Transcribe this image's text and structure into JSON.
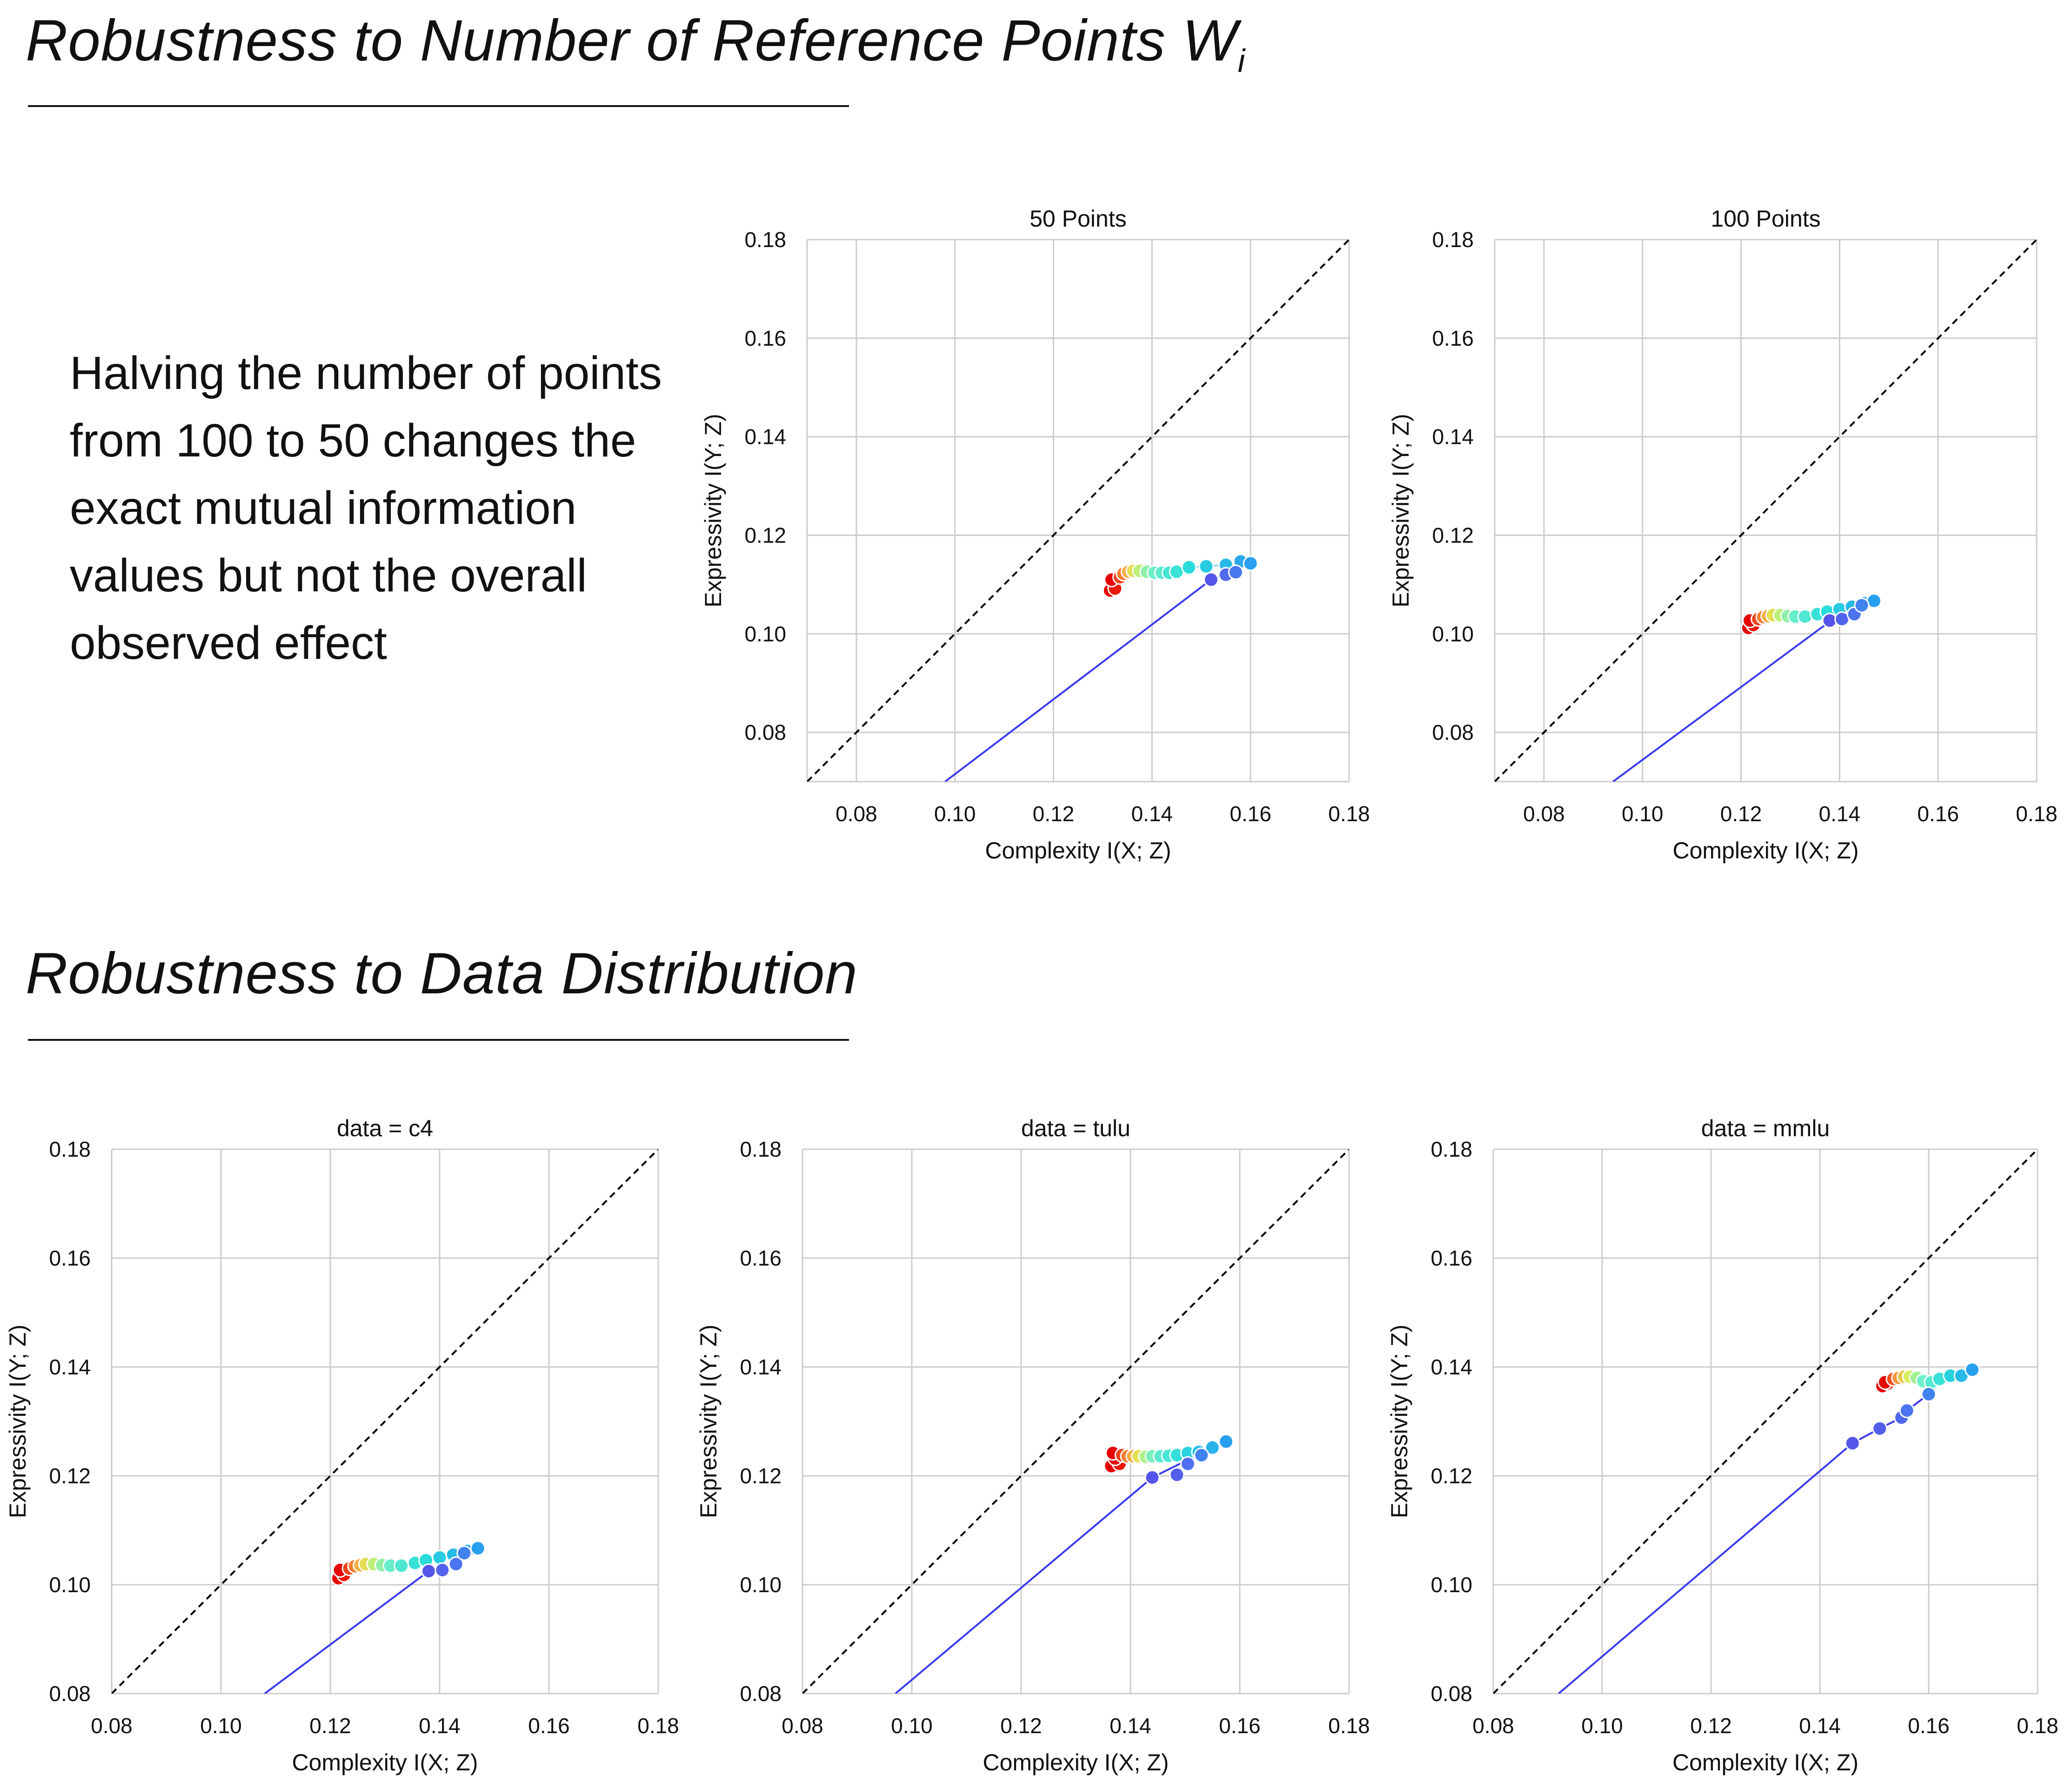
{
  "section1": {
    "title": "Robustness to Number of Reference Points W",
    "title_subscript": "i",
    "description": "Halving the number of points from 100 to 50 changes the exact mutual information values but not the overall observed effect"
  },
  "section2": {
    "title": "Robustness to Data Distribution"
  },
  "colors": {
    "frontier_line": "#3a3af0",
    "diagonal": "#000000",
    "grid": "#cccccc",
    "colormap": "rainbow (red → yellow → cyan → blue)"
  },
  "chart_data": [
    {
      "type": "scatter",
      "title": "50 Points",
      "xlabel": "Complexity I(X; Z)",
      "ylabel": "Expressivity I(Y; Z)",
      "xlim": [
        0.07,
        0.18
      ],
      "ylim": [
        0.07,
        0.18
      ],
      "xticks": [
        "0.08",
        "0.10",
        "0.12",
        "0.14",
        "0.16",
        "0.18"
      ],
      "yticks": [
        "0.08",
        "0.10",
        "0.12",
        "0.14",
        "0.16",
        "0.18"
      ],
      "diagonal": true,
      "frontier": [
        [
          0.098,
          0.07
        ],
        [
          0.152,
          0.111
        ],
        [
          0.155,
          0.112
        ],
        [
          0.157,
          0.1125
        ],
        [
          0.16,
          0.1145
        ]
      ],
      "points": [
        {
          "x": 0.1315,
          "y": 0.1088,
          "c": 0.0
        },
        {
          "x": 0.1325,
          "y": 0.1092,
          "c": 0.03
        },
        {
          "x": 0.1318,
          "y": 0.111,
          "c": 0.0
        },
        {
          "x": 0.1335,
          "y": 0.1115,
          "c": 0.08
        },
        {
          "x": 0.1342,
          "y": 0.1122,
          "c": 0.15
        },
        {
          "x": 0.1352,
          "y": 0.1126,
          "c": 0.22
        },
        {
          "x": 0.1362,
          "y": 0.1128,
          "c": 0.3
        },
        {
          "x": 0.1375,
          "y": 0.1128,
          "c": 0.38
        },
        {
          "x": 0.139,
          "y": 0.1126,
          "c": 0.45
        },
        {
          "x": 0.1405,
          "y": 0.1124,
          "c": 0.5
        },
        {
          "x": 0.142,
          "y": 0.1124,
          "c": 0.55
        },
        {
          "x": 0.1435,
          "y": 0.1124,
          "c": 0.6
        },
        {
          "x": 0.145,
          "y": 0.1126,
          "c": 0.63
        },
        {
          "x": 0.1475,
          "y": 0.1135,
          "c": 0.68
        },
        {
          "x": 0.151,
          "y": 0.1137,
          "c": 0.72
        },
        {
          "x": 0.155,
          "y": 0.114,
          "c": 0.76
        },
        {
          "x": 0.158,
          "y": 0.1147,
          "c": 0.8
        },
        {
          "x": 0.16,
          "y": 0.1143,
          "c": 0.82
        },
        {
          "x": 0.152,
          "y": 0.111,
          "c": 0.97
        },
        {
          "x": 0.155,
          "y": 0.112,
          "c": 0.93
        },
        {
          "x": 0.157,
          "y": 0.1125,
          "c": 0.9
        }
      ]
    },
    {
      "type": "scatter",
      "title": "100 Points",
      "xlabel": "Complexity I(X; Z)",
      "ylabel": "Expressivity I(Y; Z)",
      "xlim": [
        0.07,
        0.18
      ],
      "ylim": [
        0.07,
        0.18
      ],
      "xticks": [
        "0.08",
        "0.10",
        "0.12",
        "0.14",
        "0.16",
        "0.18"
      ],
      "yticks": [
        "0.08",
        "0.10",
        "0.12",
        "0.14",
        "0.16",
        "0.18"
      ],
      "diagonal": true,
      "frontier": [
        [
          0.094,
          0.07
        ],
        [
          0.138,
          0.1025
        ],
        [
          0.141,
          0.103
        ],
        [
          0.143,
          0.104
        ],
        [
          0.147,
          0.1065
        ]
      ],
      "points": [
        {
          "x": 0.1215,
          "y": 0.1012,
          "c": 0.0
        },
        {
          "x": 0.1225,
          "y": 0.1018,
          "c": 0.03
        },
        {
          "x": 0.1218,
          "y": 0.1027,
          "c": 0.0
        },
        {
          "x": 0.1235,
          "y": 0.103,
          "c": 0.08
        },
        {
          "x": 0.1245,
          "y": 0.1034,
          "c": 0.15
        },
        {
          "x": 0.1255,
          "y": 0.1036,
          "c": 0.22
        },
        {
          "x": 0.1265,
          "y": 0.1038,
          "c": 0.3
        },
        {
          "x": 0.128,
          "y": 0.1038,
          "c": 0.38
        },
        {
          "x": 0.1295,
          "y": 0.1036,
          "c": 0.45
        },
        {
          "x": 0.131,
          "y": 0.1035,
          "c": 0.52
        },
        {
          "x": 0.133,
          "y": 0.1035,
          "c": 0.58
        },
        {
          "x": 0.1355,
          "y": 0.104,
          "c": 0.64
        },
        {
          "x": 0.1375,
          "y": 0.1045,
          "c": 0.68
        },
        {
          "x": 0.14,
          "y": 0.105,
          "c": 0.72
        },
        {
          "x": 0.1425,
          "y": 0.1055,
          "c": 0.76
        },
        {
          "x": 0.145,
          "y": 0.1062,
          "c": 0.8
        },
        {
          "x": 0.147,
          "y": 0.1067,
          "c": 0.82
        },
        {
          "x": 0.138,
          "y": 0.1027,
          "c": 0.97
        },
        {
          "x": 0.1405,
          "y": 0.103,
          "c": 0.94
        },
        {
          "x": 0.143,
          "y": 0.104,
          "c": 0.91
        },
        {
          "x": 0.1445,
          "y": 0.1058,
          "c": 0.88
        }
      ]
    },
    {
      "type": "scatter",
      "title": "data = c4",
      "xlabel": "Complexity I(X; Z)",
      "ylabel": "Expressivity I(Y; Z)",
      "xlim": [
        0.08,
        0.18
      ],
      "ylim": [
        0.08,
        0.18
      ],
      "xticks": [
        "0.08",
        "0.10",
        "0.12",
        "0.14",
        "0.16",
        "0.18"
      ],
      "yticks": [
        "0.08",
        "0.10",
        "0.12",
        "0.14",
        "0.16",
        "0.18"
      ],
      "diagonal": true,
      "frontier": [
        [
          0.108,
          0.08
        ],
        [
          0.138,
          0.1025
        ],
        [
          0.141,
          0.103
        ],
        [
          0.143,
          0.104
        ],
        [
          0.147,
          0.1065
        ]
      ],
      "points": [
        {
          "x": 0.1215,
          "y": 0.1012,
          "c": 0.0
        },
        {
          "x": 0.1225,
          "y": 0.1018,
          "c": 0.03
        },
        {
          "x": 0.1218,
          "y": 0.1027,
          "c": 0.0
        },
        {
          "x": 0.1235,
          "y": 0.103,
          "c": 0.08
        },
        {
          "x": 0.1245,
          "y": 0.1034,
          "c": 0.15
        },
        {
          "x": 0.1255,
          "y": 0.1036,
          "c": 0.22
        },
        {
          "x": 0.1265,
          "y": 0.1038,
          "c": 0.3
        },
        {
          "x": 0.128,
          "y": 0.1038,
          "c": 0.38
        },
        {
          "x": 0.1295,
          "y": 0.1036,
          "c": 0.45
        },
        {
          "x": 0.131,
          "y": 0.1035,
          "c": 0.52
        },
        {
          "x": 0.133,
          "y": 0.1035,
          "c": 0.58
        },
        {
          "x": 0.1355,
          "y": 0.104,
          "c": 0.64
        },
        {
          "x": 0.1375,
          "y": 0.1045,
          "c": 0.68
        },
        {
          "x": 0.14,
          "y": 0.105,
          "c": 0.72
        },
        {
          "x": 0.1425,
          "y": 0.1055,
          "c": 0.76
        },
        {
          "x": 0.145,
          "y": 0.1062,
          "c": 0.8
        },
        {
          "x": 0.147,
          "y": 0.1067,
          "c": 0.82
        },
        {
          "x": 0.138,
          "y": 0.1025,
          "c": 0.97
        },
        {
          "x": 0.1405,
          "y": 0.1027,
          "c": 0.94
        },
        {
          "x": 0.143,
          "y": 0.1038,
          "c": 0.91
        },
        {
          "x": 0.1445,
          "y": 0.1058,
          "c": 0.88
        }
      ]
    },
    {
      "type": "scatter",
      "title": "data = tulu",
      "xlabel": "Complexity I(X; Z)",
      "ylabel": "Expressivity I(Y; Z)",
      "xlim": [
        0.08,
        0.18
      ],
      "ylim": [
        0.08,
        0.18
      ],
      "xticks": [
        "0.08",
        "0.10",
        "0.12",
        "0.14",
        "0.16",
        "0.18"
      ],
      "yticks": [
        "0.08",
        "0.10",
        "0.12",
        "0.14",
        "0.16",
        "0.18"
      ],
      "diagonal": true,
      "frontier": [
        [
          0.097,
          0.08
        ],
        [
          0.144,
          0.1197
        ],
        [
          0.149,
          0.1222
        ],
        [
          0.153,
          0.124
        ],
        [
          0.158,
          0.1262
        ]
      ],
      "points": [
        {
          "x": 0.1365,
          "y": 0.1218,
          "c": 0.0
        },
        {
          "x": 0.138,
          "y": 0.1222,
          "c": 0.03
        },
        {
          "x": 0.1372,
          "y": 0.1232,
          "c": 0.0
        },
        {
          "x": 0.1368,
          "y": 0.1242,
          "c": 0.0
        },
        {
          "x": 0.1385,
          "y": 0.1238,
          "c": 0.08
        },
        {
          "x": 0.1395,
          "y": 0.1236,
          "c": 0.15
        },
        {
          "x": 0.1405,
          "y": 0.1236,
          "c": 0.22
        },
        {
          "x": 0.1415,
          "y": 0.1236,
          "c": 0.3
        },
        {
          "x": 0.1428,
          "y": 0.1235,
          "c": 0.4
        },
        {
          "x": 0.144,
          "y": 0.1236,
          "c": 0.48
        },
        {
          "x": 0.1455,
          "y": 0.1236,
          "c": 0.55
        },
        {
          "x": 0.147,
          "y": 0.1237,
          "c": 0.6
        },
        {
          "x": 0.1485,
          "y": 0.1238,
          "c": 0.65
        },
        {
          "x": 0.1505,
          "y": 0.1242,
          "c": 0.7
        },
        {
          "x": 0.1525,
          "y": 0.1244,
          "c": 0.74
        },
        {
          "x": 0.155,
          "y": 0.1252,
          "c": 0.78
        },
        {
          "x": 0.1575,
          "y": 0.1263,
          "c": 0.82
        },
        {
          "x": 0.144,
          "y": 0.1197,
          "c": 0.97
        },
        {
          "x": 0.1485,
          "y": 0.1202,
          "c": 0.95
        },
        {
          "x": 0.1505,
          "y": 0.1222,
          "c": 0.92
        },
        {
          "x": 0.153,
          "y": 0.1238,
          "c": 0.88
        }
      ]
    },
    {
      "type": "scatter",
      "title": "data = mmlu",
      "xlabel": "Complexity I(X; Z)",
      "ylabel": "Expressivity I(Y; Z)",
      "xlim": [
        0.08,
        0.18
      ],
      "ylim": [
        0.08,
        0.18
      ],
      "xticks": [
        "0.08",
        "0.10",
        "0.12",
        "0.14",
        "0.16",
        "0.18"
      ],
      "yticks": [
        "0.08",
        "0.10",
        "0.12",
        "0.14",
        "0.16",
        "0.18"
      ],
      "diagonal": true,
      "frontier": [
        [
          0.092,
          0.08
        ],
        [
          0.146,
          0.126
        ],
        [
          0.151,
          0.1287
        ],
        [
          0.155,
          0.1307
        ],
        [
          0.156,
          0.132
        ],
        [
          0.16,
          0.135
        ],
        [
          0.163,
          0.138
        ],
        [
          0.168,
          0.1395
        ]
      ],
      "points": [
        {
          "x": 0.1515,
          "y": 0.1365,
          "c": 0.0
        },
        {
          "x": 0.1525,
          "y": 0.137,
          "c": 0.03
        },
        {
          "x": 0.152,
          "y": 0.1372,
          "c": 0.0
        },
        {
          "x": 0.1535,
          "y": 0.1378,
          "c": 0.1
        },
        {
          "x": 0.1545,
          "y": 0.138,
          "c": 0.18
        },
        {
          "x": 0.1555,
          "y": 0.1382,
          "c": 0.26
        },
        {
          "x": 0.1565,
          "y": 0.1382,
          "c": 0.34
        },
        {
          "x": 0.1578,
          "y": 0.138,
          "c": 0.42
        },
        {
          "x": 0.159,
          "y": 0.1374,
          "c": 0.5
        },
        {
          "x": 0.1605,
          "y": 0.1372,
          "c": 0.56
        },
        {
          "x": 0.162,
          "y": 0.1378,
          "c": 0.64
        },
        {
          "x": 0.164,
          "y": 0.1384,
          "c": 0.7
        },
        {
          "x": 0.166,
          "y": 0.1384,
          "c": 0.76
        },
        {
          "x": 0.168,
          "y": 0.1395,
          "c": 0.82
        },
        {
          "x": 0.146,
          "y": 0.126,
          "c": 0.97
        },
        {
          "x": 0.151,
          "y": 0.1287,
          "c": 0.95
        },
        {
          "x": 0.155,
          "y": 0.1307,
          "c": 0.93
        },
        {
          "x": 0.156,
          "y": 0.132,
          "c": 0.91
        },
        {
          "x": 0.16,
          "y": 0.135,
          "c": 0.88
        }
      ]
    }
  ]
}
